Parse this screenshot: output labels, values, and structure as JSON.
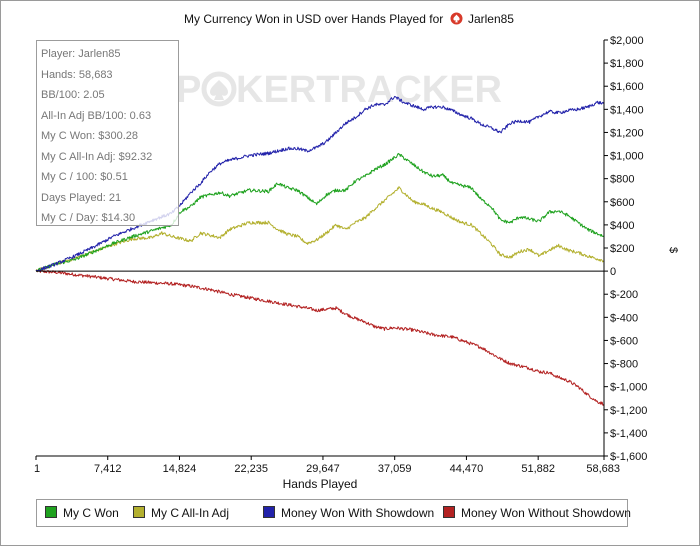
{
  "title": {
    "prefix": "My Currency Won in USD over Hands Played for",
    "player": "Jarlen85"
  },
  "watermark": {
    "text_a": "P",
    "text_b": "KERTRACKER",
    "icon": "spade-chip-icon"
  },
  "stats": [
    "Player: Jarlen85",
    "Hands: 58,683",
    "BB/100: 2.05",
    "All-In Adj BB/100: 0.63",
    "My C Won: $300.28",
    "My C All-In Adj: $92.32",
    "My C / 100: $0.51",
    "Days Played: 21",
    "My C / Day: $14.30"
  ],
  "legend": [
    {
      "label": "My C Won",
      "color": "#1fa21f"
    },
    {
      "label": "My C All-In Adj",
      "color": "#b3b02f"
    },
    {
      "label": "Money Won With Showdown",
      "color": "#2222aa"
    },
    {
      "label": "Money Won Without Showdown",
      "color": "#b32222"
    }
  ],
  "colors": {
    "title_icon": "#d83a2a",
    "zero_line": "#000000",
    "axis": "#000000"
  },
  "chart_data": {
    "type": "line",
    "title": "My Currency Won in USD over Hands Played for Jarlen85",
    "xlabel": "Hands Played",
    "ylabel": "$",
    "xlim": [
      1,
      58683
    ],
    "ylim": [
      -1600,
      2000
    ],
    "x_ticks": [
      1,
      7412,
      14824,
      22235,
      29647,
      37059,
      44470,
      51882,
      58683
    ],
    "x_tick_labels": [
      "1",
      "7,412",
      "14,824",
      "22,235",
      "29,647",
      "37,059",
      "44,470",
      "51,882",
      "58,683"
    ],
    "y_ticks": [
      2000,
      1800,
      1600,
      1400,
      1200,
      1000,
      800,
      600,
      400,
      200,
      0,
      -200,
      -400,
      -600,
      -800,
      -1000,
      -1200,
      -1400,
      -1600
    ],
    "y_tick_labels": [
      "$2,000",
      "$1,800",
      "$1,600",
      "$1,400",
      "$1,200",
      "$1,000",
      "$800",
      "$600",
      "$400",
      "$200",
      "0",
      "$-200",
      "$-400",
      "$-600",
      "$-800",
      "$-1,000",
      "$-1,200",
      "$-1,400",
      "$-1,600"
    ],
    "y_axis_side": "right",
    "grid": false,
    "legend_position": "bottom",
    "series": [
      {
        "name": "My C Won",
        "color": "#1fa21f",
        "points": [
          [
            1,
            0
          ],
          [
            2000,
            60
          ],
          [
            4000,
            100
          ],
          [
            6000,
            170
          ],
          [
            8000,
            240
          ],
          [
            10000,
            300
          ],
          [
            12000,
            350
          ],
          [
            14000,
            400
          ],
          [
            15000,
            520
          ],
          [
            16000,
            560
          ],
          [
            17000,
            640
          ],
          [
            18000,
            660
          ],
          [
            19000,
            680
          ],
          [
            20000,
            650
          ],
          [
            22000,
            700
          ],
          [
            24000,
            690
          ],
          [
            25000,
            760
          ],
          [
            26000,
            720
          ],
          [
            27000,
            700
          ],
          [
            28000,
            640
          ],
          [
            29000,
            580
          ],
          [
            30000,
            660
          ],
          [
            31000,
            700
          ],
          [
            32000,
            700
          ],
          [
            33000,
            780
          ],
          [
            34000,
            820
          ],
          [
            35000,
            880
          ],
          [
            36000,
            920
          ],
          [
            37500,
            1010
          ],
          [
            39000,
            920
          ],
          [
            40000,
            860
          ],
          [
            41000,
            820
          ],
          [
            42000,
            830
          ],
          [
            43000,
            760
          ],
          [
            44000,
            740
          ],
          [
            45000,
            720
          ],
          [
            46000,
            620
          ],
          [
            47000,
            560
          ],
          [
            48000,
            440
          ],
          [
            49000,
            420
          ],
          [
            50000,
            470
          ],
          [
            52000,
            430
          ],
          [
            53000,
            510
          ],
          [
            54000,
            520
          ],
          [
            55000,
            480
          ],
          [
            56000,
            420
          ],
          [
            57000,
            360
          ],
          [
            58683,
            300
          ]
        ]
      },
      {
        "name": "My C All-In Adj",
        "color": "#b3b02f",
        "points": [
          [
            1,
            0
          ],
          [
            2000,
            60
          ],
          [
            4000,
            110
          ],
          [
            6000,
            170
          ],
          [
            8000,
            230
          ],
          [
            10000,
            280
          ],
          [
            12000,
            290
          ],
          [
            13000,
            330
          ],
          [
            14000,
            300
          ],
          [
            16000,
            260
          ],
          [
            17000,
            330
          ],
          [
            18000,
            310
          ],
          [
            19000,
            290
          ],
          [
            20000,
            360
          ],
          [
            22000,
            420
          ],
          [
            24000,
            420
          ],
          [
            25000,
            360
          ],
          [
            26000,
            320
          ],
          [
            27000,
            300
          ],
          [
            28000,
            240
          ],
          [
            29000,
            270
          ],
          [
            30000,
            330
          ],
          [
            31000,
            400
          ],
          [
            32000,
            360
          ],
          [
            33000,
            420
          ],
          [
            34000,
            460
          ],
          [
            35000,
            540
          ],
          [
            36000,
            610
          ],
          [
            37500,
            720
          ],
          [
            39000,
            600
          ],
          [
            40000,
            580
          ],
          [
            41000,
            540
          ],
          [
            42000,
            510
          ],
          [
            43000,
            460
          ],
          [
            44000,
            420
          ],
          [
            45000,
            400
          ],
          [
            46000,
            320
          ],
          [
            47000,
            240
          ],
          [
            48000,
            140
          ],
          [
            49000,
            120
          ],
          [
            50000,
            170
          ],
          [
            51000,
            190
          ],
          [
            52000,
            130
          ],
          [
            53000,
            180
          ],
          [
            54000,
            220
          ],
          [
            55000,
            180
          ],
          [
            56000,
            160
          ],
          [
            57000,
            130
          ],
          [
            58683,
            90
          ]
        ]
      },
      {
        "name": "Money Won With Showdown",
        "color": "#2222aa",
        "points": [
          [
            1,
            0
          ],
          [
            2000,
            60
          ],
          [
            4000,
            130
          ],
          [
            6000,
            210
          ],
          [
            8000,
            300
          ],
          [
            10000,
            370
          ],
          [
            12000,
            440
          ],
          [
            14000,
            500
          ],
          [
            15000,
            580
          ],
          [
            16000,
            680
          ],
          [
            17000,
            760
          ],
          [
            18000,
            860
          ],
          [
            19000,
            930
          ],
          [
            20000,
            960
          ],
          [
            21000,
            980
          ],
          [
            22000,
            1000
          ],
          [
            24000,
            1020
          ],
          [
            26000,
            1060
          ],
          [
            27000,
            1060
          ],
          [
            28000,
            1040
          ],
          [
            29000,
            1070
          ],
          [
            30000,
            1120
          ],
          [
            31000,
            1200
          ],
          [
            32000,
            1280
          ],
          [
            33000,
            1330
          ],
          [
            34000,
            1400
          ],
          [
            35000,
            1440
          ],
          [
            36000,
            1440
          ],
          [
            37059,
            1510
          ],
          [
            38000,
            1460
          ],
          [
            39000,
            1430
          ],
          [
            40000,
            1400
          ],
          [
            41000,
            1420
          ],
          [
            42000,
            1420
          ],
          [
            43000,
            1390
          ],
          [
            44000,
            1350
          ],
          [
            45000,
            1320
          ],
          [
            46000,
            1270
          ],
          [
            47000,
            1240
          ],
          [
            48000,
            1200
          ],
          [
            49000,
            1280
          ],
          [
            50000,
            1300
          ],
          [
            51000,
            1290
          ],
          [
            52000,
            1340
          ],
          [
            53000,
            1380
          ],
          [
            54000,
            1370
          ],
          [
            55000,
            1390
          ],
          [
            56000,
            1400
          ],
          [
            57000,
            1420
          ],
          [
            58000,
            1460
          ],
          [
            58683,
            1450
          ]
        ]
      },
      {
        "name": "Money Won Without Showdown",
        "color": "#b32222",
        "points": [
          [
            1,
            0
          ],
          [
            2000,
            -10
          ],
          [
            4000,
            -30
          ],
          [
            6000,
            -50
          ],
          [
            8000,
            -70
          ],
          [
            10000,
            -90
          ],
          [
            12000,
            -100
          ],
          [
            14000,
            -110
          ],
          [
            16000,
            -130
          ],
          [
            18000,
            -160
          ],
          [
            20000,
            -200
          ],
          [
            22000,
            -230
          ],
          [
            24000,
            -260
          ],
          [
            26000,
            -290
          ],
          [
            28000,
            -320
          ],
          [
            29000,
            -340
          ],
          [
            30000,
            -330
          ],
          [
            31000,
            -320
          ],
          [
            32000,
            -370
          ],
          [
            33000,
            -410
          ],
          [
            34000,
            -440
          ],
          [
            35000,
            -480
          ],
          [
            36000,
            -500
          ],
          [
            37000,
            -490
          ],
          [
            38000,
            -500
          ],
          [
            39000,
            -510
          ],
          [
            40000,
            -530
          ],
          [
            41000,
            -550
          ],
          [
            42000,
            -560
          ],
          [
            43000,
            -570
          ],
          [
            44000,
            -600
          ],
          [
            45000,
            -630
          ],
          [
            46000,
            -660
          ],
          [
            47000,
            -710
          ],
          [
            48000,
            -760
          ],
          [
            49000,
            -800
          ],
          [
            50000,
            -820
          ],
          [
            51000,
            -840
          ],
          [
            52000,
            -870
          ],
          [
            53000,
            -880
          ],
          [
            54000,
            -920
          ],
          [
            55000,
            -950
          ],
          [
            56000,
            -1000
          ],
          [
            57000,
            -1070
          ],
          [
            58000,
            -1130
          ],
          [
            58683,
            -1150
          ]
        ]
      }
    ]
  }
}
